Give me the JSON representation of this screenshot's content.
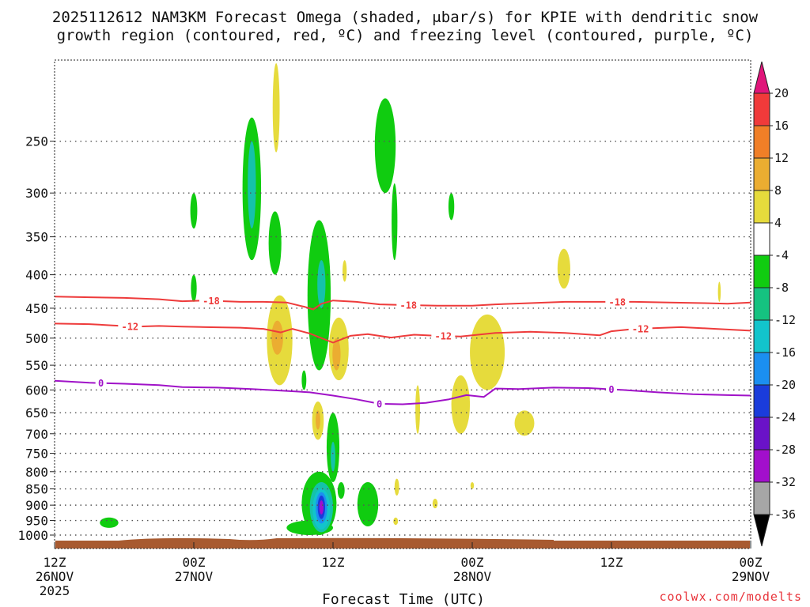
{
  "chart_data": {
    "type": "heatmap",
    "title_lines": [
      "2025112612 NAM3KM Forecast Omega (shaded, μbar/s) for KPIE with dendritic snow",
      "growth region (contoured, red, ºC) and freezing level (contoured, purple, ºC)"
    ],
    "xlabel": "Forecast Time (UTC)",
    "credit": "coolwx.com/modelts",
    "x_hours_range": [
      0,
      60
    ],
    "x_ticks": [
      {
        "hour": 0,
        "lines": [
          "12Z",
          "26NOV",
          "2025"
        ]
      },
      {
        "hour": 12,
        "lines": [
          "00Z",
          "27NOV"
        ]
      },
      {
        "hour": 24,
        "lines": [
          "12Z"
        ]
      },
      {
        "hour": 36,
        "lines": [
          "00Z",
          "28NOV"
        ]
      },
      {
        "hour": 48,
        "lines": [
          "12Z"
        ]
      },
      {
        "hour": 60,
        "lines": [
          "00Z",
          "29NOV"
        ]
      }
    ],
    "y_pressure_levels": [
      250,
      300,
      350,
      400,
      450,
      500,
      550,
      600,
      650,
      700,
      750,
      800,
      850,
      900,
      950,
      1000
    ],
    "y_top_pressure": 190,
    "colorbar": {
      "tick_labels": [
        "20",
        "16",
        "12",
        "8",
        "4",
        "-4",
        "-8",
        "-12",
        "-16",
        "-20",
        "-24",
        "-28",
        "-32",
        "-36"
      ],
      "bins": [
        {
          "lo": 16,
          "hi": 20,
          "color": "#f03a3a"
        },
        {
          "lo": 12,
          "hi": 16,
          "color": "#f07f27"
        },
        {
          "lo": 8,
          "hi": 12,
          "color": "#ebad31"
        },
        {
          "lo": 4,
          "hi": 8,
          "color": "#e6db3c"
        },
        {
          "lo": -4,
          "hi": 4,
          "color": "#ffffff"
        },
        {
          "lo": -8,
          "hi": -4,
          "color": "#10cc10"
        },
        {
          "lo": -12,
          "hi": -8,
          "color": "#15c280"
        },
        {
          "lo": -16,
          "hi": -12,
          "color": "#12c4cc"
        },
        {
          "lo": -20,
          "hi": -16,
          "color": "#1b8ff0"
        },
        {
          "lo": -24,
          "hi": -20,
          "color": "#1a3cdb"
        },
        {
          "lo": -28,
          "hi": -24,
          "color": "#6a12c8"
        },
        {
          "lo": -32,
          "hi": -28,
          "color": "#a20fcc"
        },
        {
          "lo": -36,
          "hi": -32,
          "color": "#a6a6a6"
        }
      ],
      "over_color": "#e0157a",
      "under_color": "#000000"
    },
    "contours": [
      {
        "name": "dgz-minus-18",
        "label": "-18",
        "color": "#ee3b3b",
        "points": [
          [
            0,
            432
          ],
          [
            3,
            433
          ],
          [
            6,
            434
          ],
          [
            9,
            436
          ],
          [
            11,
            439
          ],
          [
            13,
            438
          ],
          [
            16,
            440
          ],
          [
            18,
            440
          ],
          [
            20,
            441
          ],
          [
            21.6,
            448
          ],
          [
            22.3,
            452
          ],
          [
            23,
            443
          ],
          [
            24,
            438
          ],
          [
            26,
            440
          ],
          [
            28,
            444
          ],
          [
            30,
            445
          ],
          [
            33,
            446
          ],
          [
            36,
            446
          ],
          [
            38,
            444
          ],
          [
            41,
            442
          ],
          [
            44,
            440
          ],
          [
            47,
            440
          ],
          [
            50,
            440
          ],
          [
            53,
            441
          ],
          [
            56,
            442
          ],
          [
            58,
            443
          ],
          [
            60,
            441
          ]
        ],
        "label_hours": [
          13.5,
          30.5,
          48.5
        ]
      },
      {
        "name": "dgz-minus-12",
        "label": "-12",
        "color": "#ee3b3b",
        "points": [
          [
            0,
            475
          ],
          [
            3,
            476
          ],
          [
            5,
            478
          ],
          [
            7,
            480
          ],
          [
            9,
            479
          ],
          [
            11,
            480
          ],
          [
            13,
            481
          ],
          [
            16,
            482
          ],
          [
            18,
            484
          ],
          [
            19.5,
            490
          ],
          [
            20.5,
            484
          ],
          [
            22,
            492
          ],
          [
            24,
            508
          ],
          [
            25.5,
            496
          ],
          [
            27,
            493
          ],
          [
            29,
            499
          ],
          [
            31,
            494
          ],
          [
            33,
            496
          ],
          [
            35,
            497
          ],
          [
            38,
            491
          ],
          [
            41,
            489
          ],
          [
            44,
            491
          ],
          [
            47,
            495
          ],
          [
            48,
            488
          ],
          [
            50,
            484
          ],
          [
            54,
            481
          ],
          [
            57,
            484
          ],
          [
            60,
            487
          ]
        ],
        "label_hours": [
          6.5,
          33.5,
          50.5
        ]
      },
      {
        "name": "freezing-level-0",
        "label": "0",
        "color": "#a012c8",
        "points": [
          [
            0,
            581
          ],
          [
            3,
            585
          ],
          [
            6,
            587
          ],
          [
            9,
            590
          ],
          [
            11,
            594
          ],
          [
            14,
            595
          ],
          [
            17,
            598
          ],
          [
            20,
            602
          ],
          [
            22,
            605
          ],
          [
            24,
            612
          ],
          [
            26,
            620
          ],
          [
            28,
            630
          ],
          [
            30,
            631
          ],
          [
            32,
            628
          ],
          [
            34,
            620
          ],
          [
            35.5,
            611
          ],
          [
            37,
            615
          ],
          [
            38,
            597
          ],
          [
            40,
            598
          ],
          [
            43,
            595
          ],
          [
            46,
            596
          ],
          [
            49,
            600
          ],
          [
            52,
            605
          ],
          [
            55,
            609
          ],
          [
            58,
            611
          ],
          [
            60,
            612
          ]
        ],
        "label_hours": [
          4,
          28,
          48
        ]
      }
    ],
    "shaded_regions": [
      {
        "name": "omega-green-250",
        "color": "#10cc10",
        "hour": 17.0,
        "p_top": 230,
        "p_bot": 380,
        "half_width_hours": 0.8
      },
      {
        "name": "omega-teal-280",
        "color": "#15c2aa",
        "hour": 17.0,
        "p_top": 250,
        "p_bot": 340,
        "half_width_hours": 0.35
      },
      {
        "name": "omega-green-330",
        "color": "#10cc10",
        "hour": 19.0,
        "p_top": 320,
        "p_bot": 400,
        "half_width_hours": 0.55
      },
      {
        "name": "omega-green-310",
        "color": "#10cc10",
        "hour": 12.0,
        "p_top": 300,
        "p_bot": 340,
        "half_width_hours": 0.3
      },
      {
        "name": "omega-green-420",
        "color": "#10cc10",
        "hour": 12.0,
        "p_top": 400,
        "p_bot": 440,
        "half_width_hours": 0.25
      },
      {
        "name": "omega-green-260",
        "color": "#10cc10",
        "hour": 28.5,
        "p_top": 215,
        "p_bot": 300,
        "half_width_hours": 0.9
      },
      {
        "name": "omega-green-330b",
        "color": "#10cc10",
        "hour": 29.3,
        "p_top": 290,
        "p_bot": 380,
        "half_width_hours": 0.25
      },
      {
        "name": "omega-green-320",
        "color": "#10cc10",
        "hour": 34.2,
        "p_top": 300,
        "p_bot": 330,
        "half_width_hours": 0.25
      },
      {
        "name": "omega-green-450",
        "color": "#10cc10",
        "hour": 22.8,
        "p_top": 330,
        "p_bot": 560,
        "half_width_hours": 1.0
      },
      {
        "name": "omega-teal-430",
        "color": "#15c2aa",
        "hour": 23.0,
        "p_top": 380,
        "p_bot": 450,
        "half_width_hours": 0.35
      },
      {
        "name": "omega-green-580",
        "color": "#10cc10",
        "hour": 21.5,
        "p_top": 560,
        "p_bot": 600,
        "half_width_hours": 0.2
      },
      {
        "name": "omega-green-720",
        "color": "#10cc10",
        "hour": 24.0,
        "p_top": 650,
        "p_bot": 830,
        "half_width_hours": 0.55
      },
      {
        "name": "omega-teal-760",
        "color": "#15c2aa",
        "hour": 24.0,
        "p_top": 720,
        "p_bot": 800,
        "half_width_hours": 0.2
      },
      {
        "name": "omega-green-900",
        "color": "#10cc10",
        "hour": 22.8,
        "p_top": 800,
        "p_bot": 1000,
        "half_width_hours": 1.5
      },
      {
        "name": "omega-green-base",
        "color": "#10cc10",
        "hour": 22.0,
        "p_top": 950,
        "p_bot": 1000,
        "half_width_hours": 2.0
      },
      {
        "name": "omega-teal-900",
        "color": "#15c2aa",
        "hour": 23.0,
        "p_top": 830,
        "p_bot": 990,
        "half_width_hours": 1.0
      },
      {
        "name": "omega-cyan-900",
        "color": "#12c4cc",
        "hour": 23.0,
        "p_top": 850,
        "p_bot": 980,
        "half_width_hours": 0.75
      },
      {
        "name": "omega-blue-900",
        "color": "#1b8ff0",
        "hour": 23.0,
        "p_top": 860,
        "p_bot": 960,
        "half_width_hours": 0.5
      },
      {
        "name": "omega-darkblue-900",
        "color": "#1a3cdb",
        "hour": 23.0,
        "p_top": 870,
        "p_bot": 945,
        "half_width_hours": 0.32
      },
      {
        "name": "omega-purple-900",
        "color": "#a20fcc",
        "hour": 23.0,
        "p_top": 885,
        "p_bot": 930,
        "half_width_hours": 0.18
      },
      {
        "name": "omega-green-860",
        "color": "#10cc10",
        "hour": 24.7,
        "p_top": 830,
        "p_bot": 880,
        "half_width_hours": 0.3
      },
      {
        "name": "omega-green-880",
        "color": "#10cc10",
        "hour": 27.0,
        "p_top": 830,
        "p_bot": 970,
        "half_width_hours": 0.9
      },
      {
        "name": "omega-green-960",
        "color": "#10cc10",
        "hour": 4.7,
        "p_top": 940,
        "p_bot": 975,
        "half_width_hours": 0.8
      },
      {
        "name": "omega-yellow-250",
        "color": "#e6db3c",
        "hour": 19.1,
        "p_top": 190,
        "p_bot": 260,
        "half_width_hours": 0.3
      },
      {
        "name": "omega-yellow-390",
        "color": "#e6db3c",
        "hour": 25.0,
        "p_top": 380,
        "p_bot": 410,
        "half_width_hours": 0.18
      },
      {
        "name": "omega-yellow-400b",
        "color": "#e6db3c",
        "hour": 43.9,
        "p_top": 365,
        "p_bot": 420,
        "half_width_hours": 0.55
      },
      {
        "name": "omega-yellow-420c",
        "color": "#e6db3c",
        "hour": 57.3,
        "p_top": 410,
        "p_bot": 440,
        "half_width_hours": 0.12
      },
      {
        "name": "omega-yellow-500",
        "color": "#e6db3c",
        "hour": 19.4,
        "p_top": 430,
        "p_bot": 590,
        "half_width_hours": 1.1
      },
      {
        "name": "omega-orange-500",
        "color": "#ebad31",
        "hour": 19.2,
        "p_top": 470,
        "p_bot": 530,
        "half_width_hours": 0.5
      },
      {
        "name": "omega-yellow-520",
        "color": "#e6db3c",
        "hour": 24.5,
        "p_top": 465,
        "p_bot": 580,
        "half_width_hours": 0.85
      },
      {
        "name": "omega-orange-520",
        "color": "#ebad31",
        "hour": 24.3,
        "p_top": 500,
        "p_bot": 560,
        "half_width_hours": 0.35
      },
      {
        "name": "omega-yellow-540",
        "color": "#e6db3c",
        "hour": 37.3,
        "p_top": 460,
        "p_bot": 600,
        "half_width_hours": 1.5
      },
      {
        "name": "omega-yellow-600",
        "color": "#e6db3c",
        "hour": 35.0,
        "p_top": 570,
        "p_bot": 700,
        "half_width_hours": 0.8
      },
      {
        "name": "omega-yellow-620",
        "color": "#e6db3c",
        "hour": 31.3,
        "p_top": 590,
        "p_bot": 700,
        "half_width_hours": 0.2
      },
      {
        "name": "omega-yellow-660",
        "color": "#e6db3c",
        "hour": 40.5,
        "p_top": 645,
        "p_bot": 705,
        "half_width_hours": 0.85
      },
      {
        "name": "omega-yellow-670",
        "color": "#e6db3c",
        "hour": 22.7,
        "p_top": 625,
        "p_bot": 715,
        "half_width_hours": 0.5
      },
      {
        "name": "omega-orange-660",
        "color": "#ebad31",
        "hour": 22.7,
        "p_top": 645,
        "p_bot": 690,
        "half_width_hours": 0.2
      },
      {
        "name": "omega-yellow-840",
        "color": "#e6db3c",
        "hour": 29.5,
        "p_top": 820,
        "p_bot": 870,
        "half_width_hours": 0.2
      },
      {
        "name": "omega-yellow-840b",
        "color": "#e6db3c",
        "hour": 36.0,
        "p_top": 830,
        "p_bot": 850,
        "half_width_hours": 0.15
      },
      {
        "name": "omega-yellow-890",
        "color": "#e6db3c",
        "hour": 32.8,
        "p_top": 880,
        "p_bot": 910,
        "half_width_hours": 0.22
      },
      {
        "name": "omega-yellow-950",
        "color": "#e6db3c",
        "hour": 29.4,
        "p_top": 940,
        "p_bot": 965,
        "half_width_hours": 0.2
      }
    ],
    "terrain_color": "#a85a30"
  }
}
